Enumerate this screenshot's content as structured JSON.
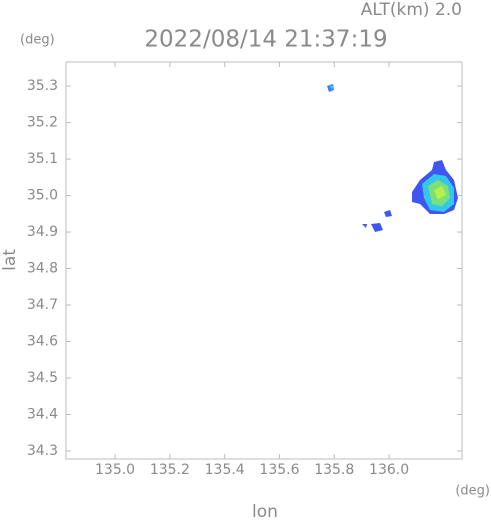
{
  "chart_data": {
    "type": "map",
    "title": "2022/08/14 21:37:19",
    "altitude_label": "ALT(km) 2.0",
    "y_unit": "(deg)",
    "x_unit": "(deg)",
    "ylabel": "lat",
    "xlabel": "lon",
    "xlim": [
      134.821,
      136.266
    ],
    "ylim": [
      34.278,
      35.366
    ],
    "xticks": [
      {
        "value": 135,
        "label": "135.0"
      },
      135.2,
      135.4,
      135.6,
      135.8,
      {
        "value": 136,
        "label": "136.0"
      }
    ],
    "yticks": [
      35.3,
      35.2,
      35.1,
      {
        "value": 35,
        "label": "35.0"
      },
      34.9,
      34.8,
      34.7,
      34.6,
      34.5,
      34.4,
      34.3
    ]
  }
}
